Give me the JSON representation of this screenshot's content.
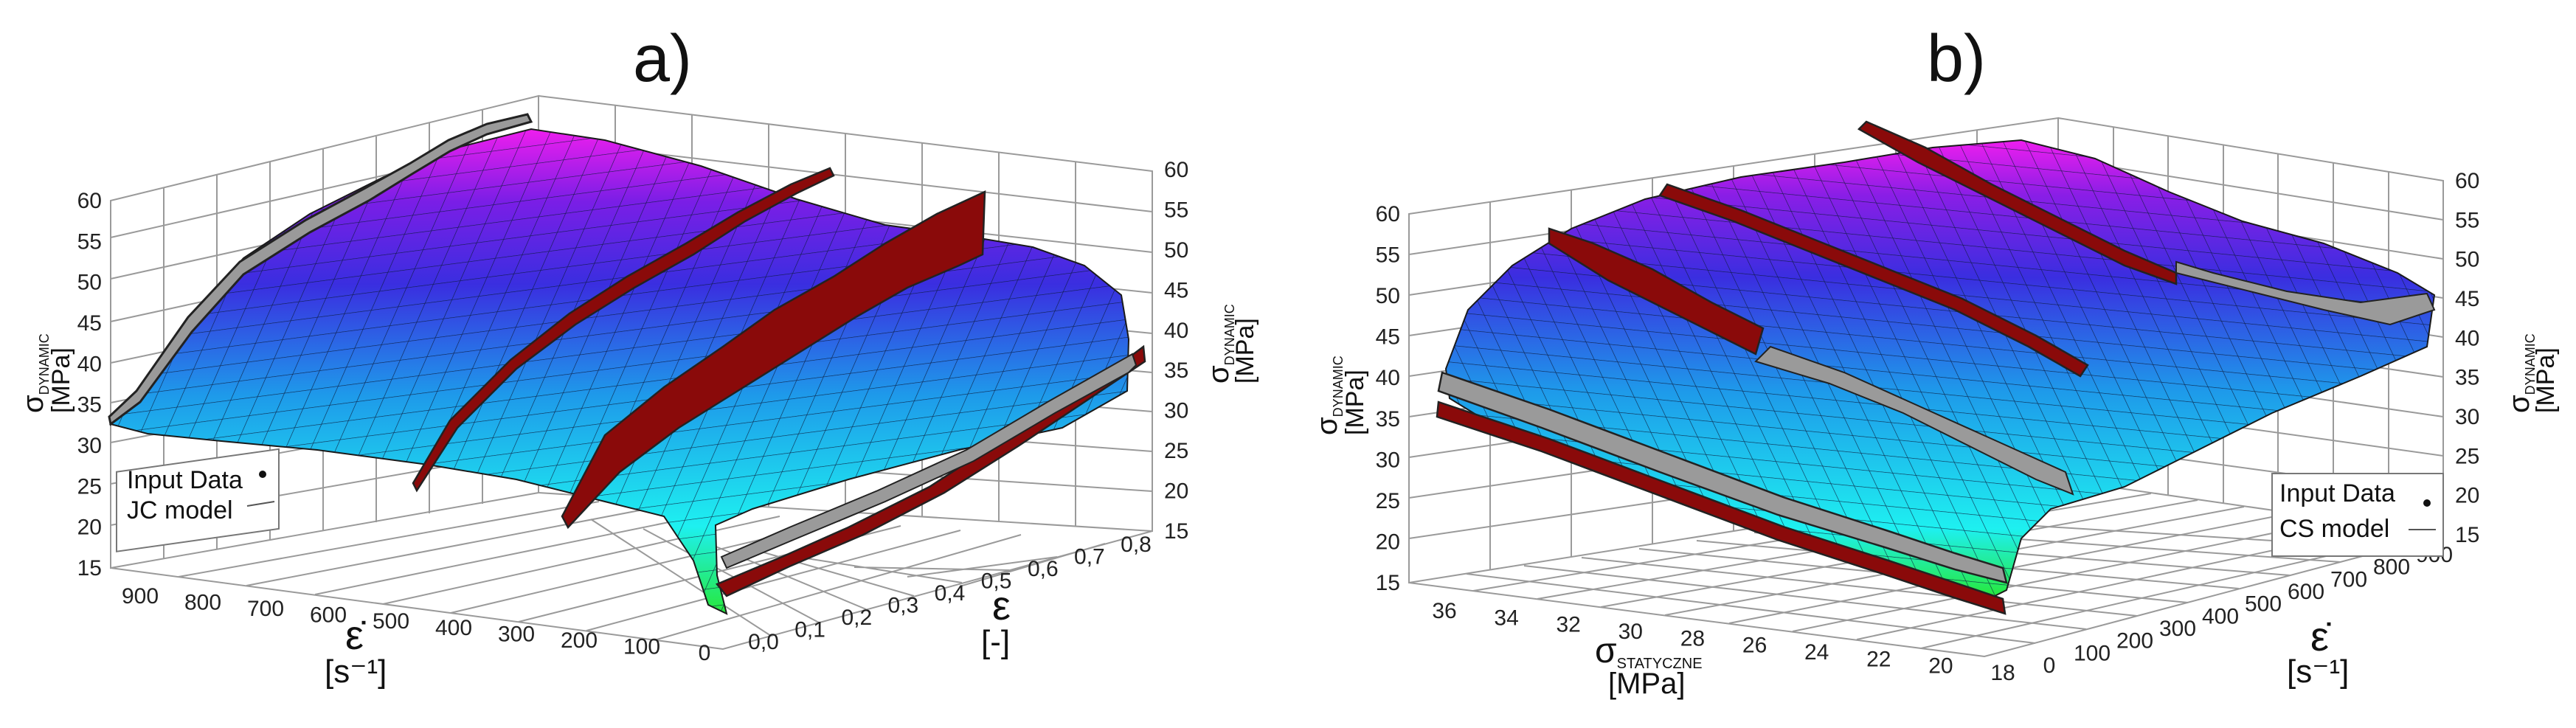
{
  "panels": [
    {
      "title": "a)",
      "legend": [
        "Input Data",
        "JC model"
      ],
      "labels": {
        "z_sym": "σ",
        "z_sub": "DYNAMIC",
        "z_unit": "[MPa]",
        "x_sym": "ε̇",
        "x_unit": "[s⁻¹]",
        "y_sym": "ε",
        "y_unit": "[-]"
      },
      "z_ticks": [
        "15",
        "20",
        "25",
        "30",
        "35",
        "40",
        "45",
        "50",
        "55",
        "60"
      ],
      "x_ticks": [
        "900",
        "800",
        "700",
        "600",
        "500",
        "400",
        "300",
        "200",
        "100",
        "0"
      ],
      "y_ticks": [
        "0,0",
        "0,1",
        "0,2",
        "0,3",
        "0,4",
        "0,5",
        "0,6",
        "0,7",
        "0,8"
      ]
    },
    {
      "title": "b)",
      "legend": [
        "Input Data",
        "CS model"
      ],
      "labels": {
        "z_sym": "σ",
        "z_sub": "DYNAMIC",
        "z_unit": "[MPa]",
        "s_sym": "σ",
        "s_sub": "STATYCZNE",
        "s_unit": "[MPa]",
        "x_sym": "ε̇",
        "x_unit": "[s⁻¹]"
      },
      "z_ticks": [
        "15",
        "20",
        "25",
        "30",
        "35",
        "40",
        "45",
        "50",
        "55",
        "60"
      ],
      "s_ticks": [
        "36",
        "34",
        "32",
        "30",
        "28",
        "26",
        "24",
        "22",
        "20",
        "18"
      ],
      "x_ticks": [
        "0",
        "100",
        "200",
        "300",
        "400",
        "500",
        "600",
        "700",
        "800",
        "900"
      ]
    }
  ],
  "colors": {
    "surface_low": "#27e83a",
    "surface_mid_low": "#1ef0f0",
    "surface_mid": "#1e6eea",
    "surface_high": "#3a1ee0",
    "surface_top": "#ee1eee",
    "input_data": "#8a0a0a",
    "input_shadow": "#9a9a9a",
    "grid": "#9a9a9a"
  },
  "chart_data": [
    {
      "type": "surface",
      "title": "a)",
      "model": "JC model",
      "x": {
        "name": "strain rate",
        "ticks": [
          900,
          800,
          700,
          600,
          500,
          400,
          300,
          200,
          100,
          0
        ],
        "range": [
          0,
          900
        ]
      },
      "y": {
        "name": "strain",
        "ticks": [
          0.0,
          0.1,
          0.2,
          0.3,
          0.4,
          0.5,
          0.6,
          0.7,
          0.8
        ],
        "range": [
          0,
          0.8
        ]
      },
      "z": {
        "name": "dynamic stress",
        "ticks": [
          15,
          20,
          25,
          30,
          35,
          40,
          45,
          50,
          55,
          60
        ],
        "range": [
          15,
          60
        ]
      },
      "legend": "bottom-left"
    },
    {
      "type": "surface",
      "title": "b)",
      "model": "CS model",
      "x": {
        "name": "strain rate",
        "ticks": [
          0,
          100,
          200,
          300,
          400,
          500,
          600,
          700,
          800,
          900
        ],
        "range": [
          0,
          900
        ]
      },
      "y": {
        "name": "static stress",
        "ticks": [
          36,
          34,
          32,
          30,
          28,
          26,
          24,
          22,
          20,
          18
        ],
        "range": [
          18,
          36
        ]
      },
      "z": {
        "name": "dynamic stress",
        "ticks": [
          15,
          20,
          25,
          30,
          35,
          40,
          45,
          50,
          55,
          60
        ],
        "range": [
          15,
          60
        ]
      },
      "legend": "bottom-right"
    }
  ]
}
